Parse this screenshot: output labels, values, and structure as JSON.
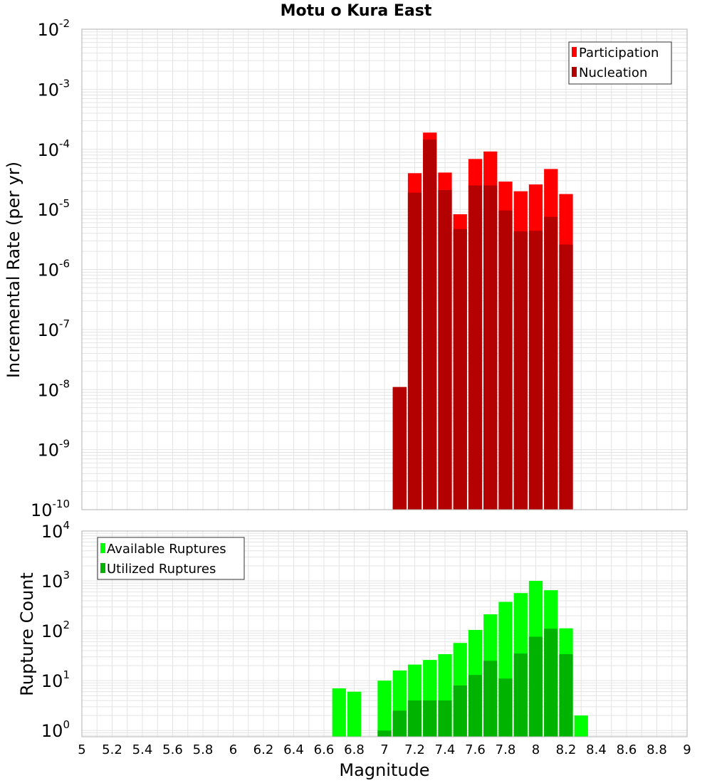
{
  "colors": {
    "participation": "#ff0000",
    "nucleation": "#b30000",
    "available": "#00ff00",
    "utilized": "#00b300",
    "grid": "#e4e4e4",
    "frame": "#b0b0b0"
  },
  "chart_data": [
    {
      "type": "bar",
      "title": "Motu o Kura East",
      "ylabel": "Incremental Rate (per yr)",
      "xlabel": "",
      "xlim": [
        5,
        9
      ],
      "ylim": [
        1e-10,
        0.01
      ],
      "yscale": "log",
      "grid": true,
      "legend_position": "top-right",
      "y_tick_labels": [
        {
          "base": "10",
          "exp": "-10",
          "value": 1e-10
        },
        {
          "base": "10",
          "exp": "-9",
          "value": 1e-09
        },
        {
          "base": "10",
          "exp": "-8",
          "value": 1e-08
        },
        {
          "base": "10",
          "exp": "-7",
          "value": 1e-07
        },
        {
          "base": "10",
          "exp": "-6",
          "value": 1e-06
        },
        {
          "base": "10",
          "exp": "-5",
          "value": 1e-05
        },
        {
          "base": "10",
          "exp": "-4",
          "value": 0.0001
        },
        {
          "base": "10",
          "exp": "-3",
          "value": 0.001
        },
        {
          "base": "10",
          "exp": "-2",
          "value": 0.01
        }
      ],
      "x": [
        7.1,
        7.2,
        7.3,
        7.4,
        7.5,
        7.6,
        7.7,
        7.8,
        7.9,
        8.0,
        8.1,
        8.2,
        8.3
      ],
      "series": [
        {
          "name": "Participation",
          "values": [
            1.1e-08,
            4e-05,
            0.00019,
            4.1e-05,
            8.3e-06,
            6.9e-05,
            9.2e-05,
            2.9e-05,
            2e-05,
            2.6e-05,
            4.7e-05,
            1.8e-05,
            null
          ]
        },
        {
          "name": "Nucleation",
          "values": [
            1.1e-08,
            1.9e-05,
            0.000145,
            2.1e-05,
            4.7e-06,
            2.5e-05,
            2.5e-05,
            9.6e-06,
            4.3e-06,
            4.4e-06,
            7.5e-06,
            2.6e-06,
            null
          ]
        }
      ]
    },
    {
      "type": "bar",
      "title": "",
      "ylabel": "Rupture Count",
      "xlabel": "Magnitude",
      "xlim": [
        5,
        9
      ],
      "ylim": [
        0.75,
        10000
      ],
      "yscale": "log",
      "grid": true,
      "legend_position": "top-left",
      "x_tick_labels": [
        "5",
        "5.2",
        "5.4",
        "5.6",
        "5.8",
        "6",
        "6.2",
        "6.4",
        "6.6",
        "6.8",
        "7",
        "7.2",
        "7.4",
        "7.6",
        "7.8",
        "8",
        "8.2",
        "8.4",
        "8.6",
        "8.8",
        "9"
      ],
      "y_tick_labels": [
        {
          "base": "10",
          "exp": "0",
          "value": 1
        },
        {
          "base": "10",
          "exp": "1",
          "value": 10
        },
        {
          "base": "10",
          "exp": "2",
          "value": 100
        },
        {
          "base": "10",
          "exp": "3",
          "value": 1000
        },
        {
          "base": "10",
          "exp": "4",
          "value": 10000
        }
      ],
      "x": [
        6.7,
        6.8,
        7.0,
        7.1,
        7.2,
        7.3,
        7.4,
        7.5,
        7.6,
        7.7,
        7.8,
        7.9,
        8.0,
        8.1,
        8.2,
        8.3
      ],
      "series": [
        {
          "name": "Available Ruptures",
          "values": [
            7,
            6,
            10,
            16,
            21,
            26,
            34,
            57,
            104,
            214,
            380,
            570,
            1000,
            650,
            112,
            2
          ]
        },
        {
          "name": "Utilized Ruptures",
          "values": [
            null,
            null,
            1,
            2.5,
            4,
            4,
            4,
            8,
            13,
            25,
            11,
            35,
            76,
            110,
            34,
            null
          ]
        }
      ]
    }
  ]
}
